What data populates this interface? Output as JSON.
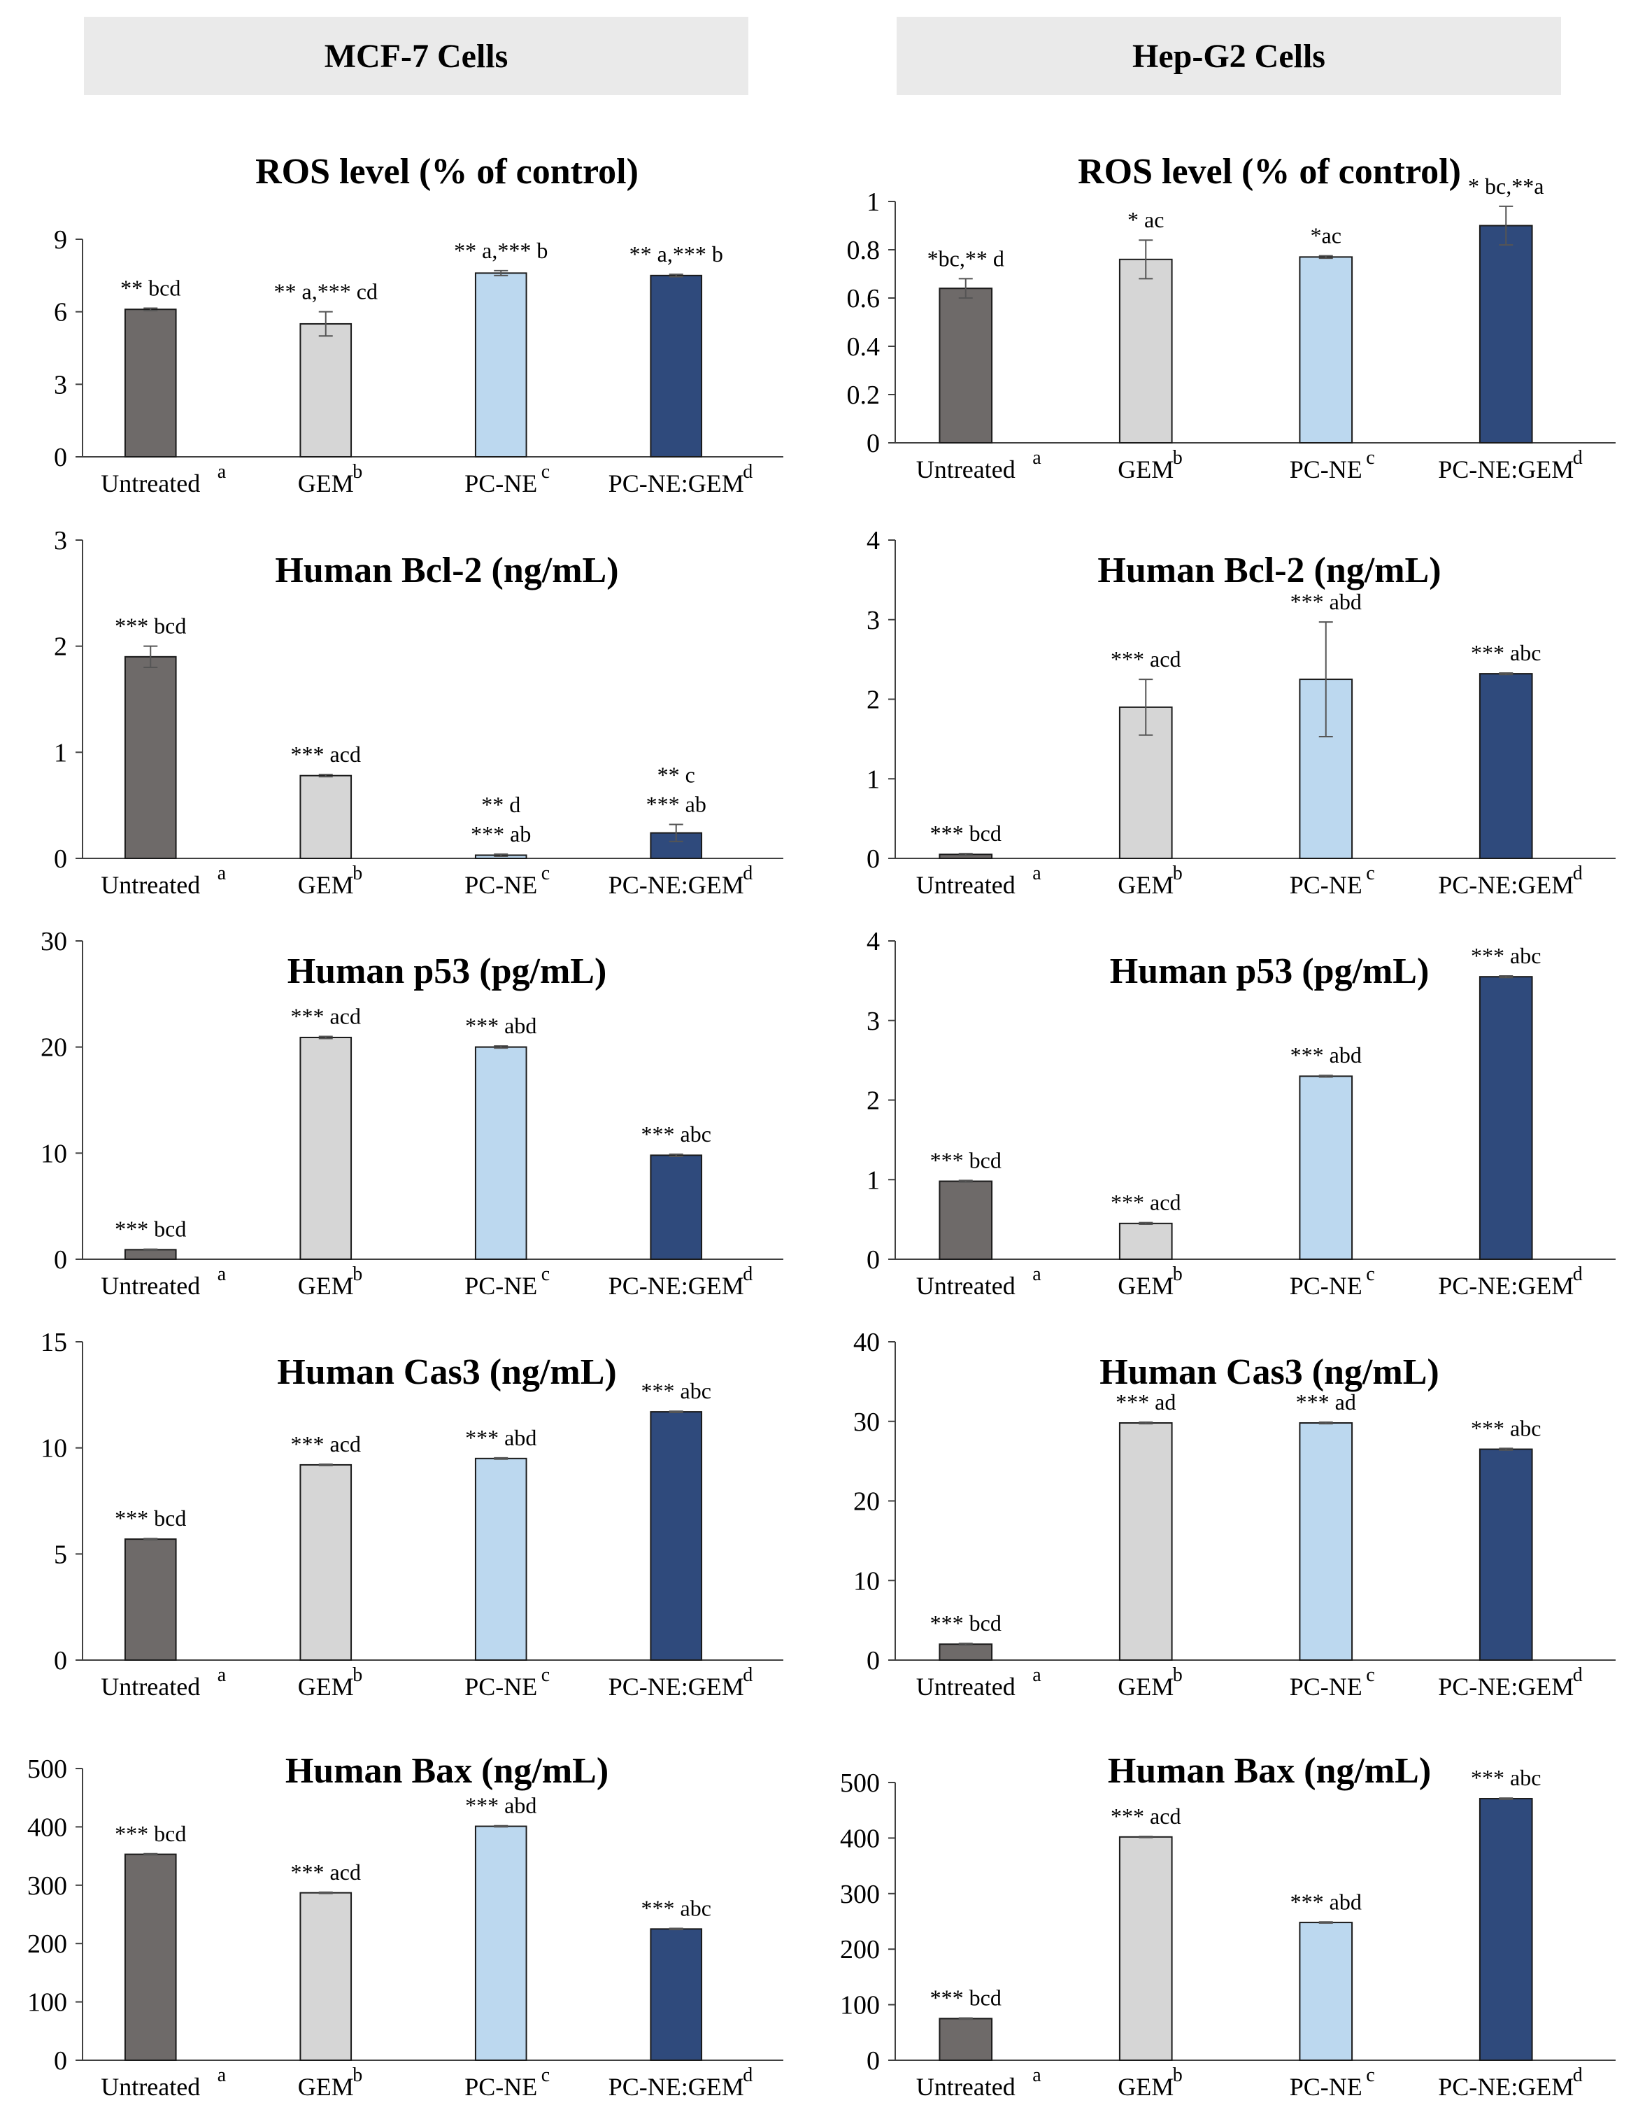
{
  "headers": {
    "left": "MCF-7 Cells",
    "right": "Hep-G2 Cells"
  },
  "colors": {
    "untreated": "#6e6a69",
    "gem": "#d6d6d6",
    "pcne": "#bcd8ef",
    "pcnegem": "#2f4a7c",
    "axis": "#404040",
    "header_bg": "#eaeaea"
  },
  "chart_data": [
    {
      "id": "mcf7-ros",
      "type": "bar",
      "title": "ROS level (% of control)",
      "categories": [
        "Untreated",
        "GEM",
        "PC-NE",
        "PC-NE:GEM"
      ],
      "superscripts": [
        "a",
        "b",
        "c",
        "d"
      ],
      "values": [
        6.1,
        5.5,
        7.6,
        7.5
      ],
      "errors": [
        0.05,
        0.5,
        0.1,
        0.05
      ],
      "annotations": [
        [
          "** bcd"
        ],
        [
          "** a,*** cd"
        ],
        [
          "** a,*** b"
        ],
        [
          "** a,*** b"
        ]
      ],
      "ylim": [
        0,
        9
      ],
      "yticks": [
        0,
        3,
        6,
        9
      ],
      "ytick_labels": [
        "0",
        "3",
        "6",
        "9"
      ]
    },
    {
      "id": "hepg2-ros",
      "type": "bar",
      "title": "ROS level (% of control)",
      "categories": [
        "Untreated",
        "GEM",
        "PC-NE",
        "PC-NE:GEM"
      ],
      "superscripts": [
        "a",
        "b",
        "c",
        "d"
      ],
      "values": [
        0.64,
        0.76,
        0.77,
        0.9
      ],
      "errors": [
        0.04,
        0.08,
        0.005,
        0.08
      ],
      "annotations": [
        [
          "*bc,** d"
        ],
        [
          "* ac"
        ],
        [
          "*ac"
        ],
        [
          "* bc,**a"
        ]
      ],
      "ylim": [
        0,
        1
      ],
      "yticks": [
        0,
        0.2,
        0.4,
        0.6,
        0.8,
        1
      ],
      "ytick_labels": [
        "0",
        "0.2",
        "0.4",
        "0.6",
        "0.8",
        "1"
      ]
    },
    {
      "id": "mcf7-bcl2",
      "type": "bar",
      "title": "Human Bcl-2  (ng/mL)",
      "categories": [
        "Untreated",
        "GEM",
        "PC-NE",
        "PC-NE:GEM"
      ],
      "superscripts": [
        "a",
        "b",
        "c",
        "d"
      ],
      "values": [
        1.9,
        0.78,
        0.03,
        0.24
      ],
      "errors": [
        0.1,
        0.01,
        0.01,
        0.08
      ],
      "annotations": [
        [
          "*** bcd"
        ],
        [
          "*** acd"
        ],
        [
          "** d",
          "*** ab"
        ],
        [
          "** c",
          "*** ab"
        ]
      ],
      "ylim": [
        0,
        3
      ],
      "yticks": [
        0,
        1,
        2,
        3
      ],
      "ytick_labels": [
        "0",
        "1",
        "2",
        "3"
      ]
    },
    {
      "id": "hepg2-bcl2",
      "type": "bar",
      "title": "Human Bcl-2 (ng/mL)",
      "categories": [
        "Untreated",
        "GEM",
        "PC-NE",
        "PC-NE:GEM"
      ],
      "superscripts": [
        "a",
        "b",
        "c",
        "d"
      ],
      "values": [
        0.05,
        1.9,
        2.25,
        2.32
      ],
      "errors": [
        0.01,
        0.35,
        0.72,
        0.01
      ],
      "annotations": [
        [
          "*** bcd"
        ],
        [
          "*** acd"
        ],
        [
          "*** abd"
        ],
        [
          "*** abc"
        ]
      ],
      "ylim": [
        0,
        4
      ],
      "yticks": [
        0,
        1,
        2,
        3,
        4
      ],
      "ytick_labels": [
        "0",
        "1",
        "2",
        "3",
        "4"
      ]
    },
    {
      "id": "mcf7-p53",
      "type": "bar",
      "title": "Human p53 (pg/mL)",
      "categories": [
        "Untreated",
        "GEM",
        "PC-NE",
        "PC-NE:GEM"
      ],
      "superscripts": [
        "a",
        "b",
        "c",
        "d"
      ],
      "values": [
        0.9,
        20.9,
        20.0,
        9.8
      ],
      "errors": [
        0.05,
        0.1,
        0.1,
        0.1
      ],
      "annotations": [
        [
          "*** bcd"
        ],
        [
          "*** acd"
        ],
        [
          "*** abd"
        ],
        [
          "*** abc"
        ]
      ],
      "ylim": [
        0,
        30
      ],
      "yticks": [
        0,
        10,
        20,
        30
      ],
      "ytick_labels": [
        "0",
        "10",
        "20",
        "30"
      ]
    },
    {
      "id": "hepg2-p53",
      "type": "bar",
      "title": "Human p53 (pg/mL)",
      "categories": [
        "Untreated",
        "GEM",
        "PC-NE",
        "PC-NE:GEM"
      ],
      "superscripts": [
        "a",
        "b",
        "c",
        "d"
      ],
      "values": [
        0.98,
        0.45,
        2.3,
        3.55
      ],
      "errors": [
        0.01,
        0.01,
        0.01,
        0.01
      ],
      "annotations": [
        [
          "*** bcd"
        ],
        [
          "*** acd"
        ],
        [
          "*** abd"
        ],
        [
          "*** abc"
        ]
      ],
      "ylim": [
        0,
        4
      ],
      "yticks": [
        0,
        1,
        2,
        3,
        4
      ],
      "ytick_labels": [
        "0",
        "1",
        "2",
        "3",
        "4"
      ]
    },
    {
      "id": "mcf7-cas3",
      "type": "bar",
      "title": "Human Cas3 (ng/mL)",
      "categories": [
        "Untreated",
        "GEM",
        "PC-NE",
        "PC-NE:GEM"
      ],
      "superscripts": [
        "a",
        "b",
        "c",
        "d"
      ],
      "values": [
        5.7,
        9.2,
        9.5,
        11.7
      ],
      "errors": [
        0.03,
        0.03,
        0.03,
        0.03
      ],
      "annotations": [
        [
          "*** bcd"
        ],
        [
          "*** acd"
        ],
        [
          "*** abd"
        ],
        [
          "*** abc"
        ]
      ],
      "ylim": [
        0,
        15
      ],
      "yticks": [
        0,
        5,
        10,
        15
      ],
      "ytick_labels": [
        "0",
        "5",
        "10",
        "15"
      ]
    },
    {
      "id": "hepg2-cas3",
      "type": "bar",
      "title": "Human Cas3 (ng/mL)",
      "categories": [
        "Untreated",
        "GEM",
        "PC-NE",
        "PC-NE:GEM"
      ],
      "superscripts": [
        "a",
        "b",
        "c",
        "d"
      ],
      "values": [
        2.0,
        29.8,
        29.8,
        26.5
      ],
      "errors": [
        0.1,
        0.1,
        0.1,
        0.1
      ],
      "annotations": [
        [
          "*** bcd"
        ],
        [
          "*** ad"
        ],
        [
          "*** ad"
        ],
        [
          "*** abc"
        ]
      ],
      "ylim": [
        0,
        40
      ],
      "yticks": [
        0,
        10,
        20,
        30,
        40
      ],
      "ytick_labels": [
        "0",
        "10",
        "20",
        "30",
        "40"
      ]
    },
    {
      "id": "mcf7-bax",
      "type": "bar",
      "title": "Human Bax (ng/mL)",
      "categories": [
        "Untreated",
        "GEM",
        "PC-NE",
        "PC-NE:GEM"
      ],
      "superscripts": [
        "a",
        "b",
        "c",
        "d"
      ],
      "values": [
        353,
        287,
        401,
        225
      ],
      "errors": [
        1,
        1,
        1,
        1
      ],
      "annotations": [
        [
          "*** bcd"
        ],
        [
          "*** acd"
        ],
        [
          "*** abd"
        ],
        [
          "*** abc"
        ]
      ],
      "ylim": [
        0,
        500
      ],
      "yticks": [
        0,
        100,
        200,
        300,
        400,
        500
      ],
      "ytick_labels": [
        "0",
        "100",
        "200",
        "300",
        "400",
        "500"
      ]
    },
    {
      "id": "hepg2-bax",
      "type": "bar",
      "title": "Human Bax (ng/mL)",
      "categories": [
        "Untreated",
        "GEM",
        "PC-NE",
        "PC-NE:GEM"
      ],
      "superscripts": [
        "a",
        "b",
        "c",
        "d"
      ],
      "values": [
        75,
        402,
        248,
        471
      ],
      "errors": [
        1,
        1,
        1,
        1
      ],
      "annotations": [
        [
          "*** bcd"
        ],
        [
          "*** acd"
        ],
        [
          "*** abd"
        ],
        [
          "*** abc"
        ]
      ],
      "ylim": [
        0,
        500
      ],
      "yticks": [
        0,
        100,
        200,
        300,
        400,
        500
      ],
      "ytick_labels": [
        "0",
        "100",
        "200",
        "300",
        "400",
        "500"
      ]
    }
  ]
}
